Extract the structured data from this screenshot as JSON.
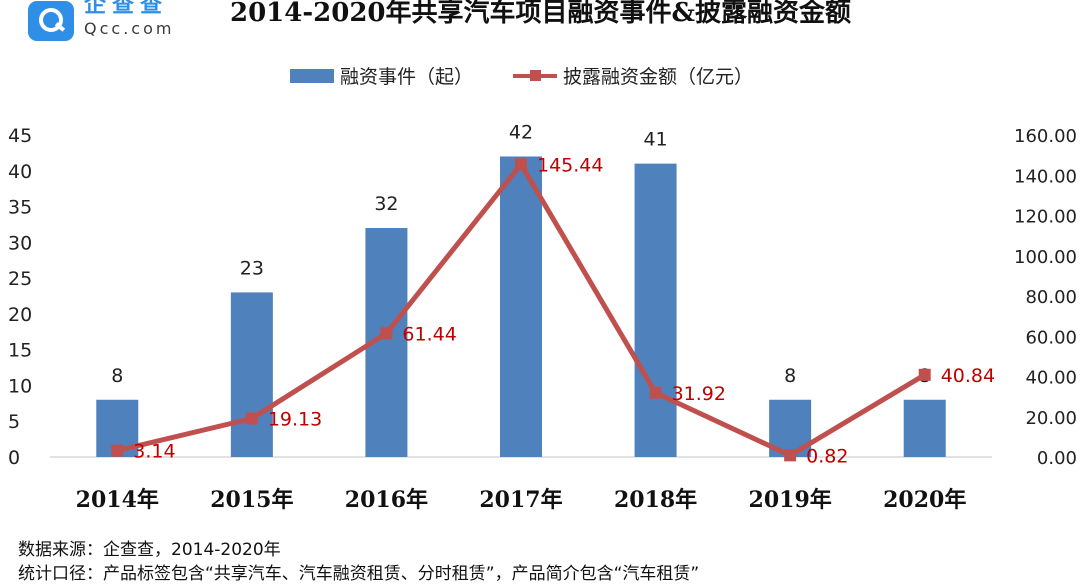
{
  "logo": {
    "cn": "企查查",
    "en": "Qcc.com"
  },
  "title": "2014-2020年共享汽车项目融资事件&披露融资金额",
  "legend": {
    "bar": "融资事件（起）",
    "line": "披露融资金额（亿元）"
  },
  "colors": {
    "bar": "#4f81bd",
    "line": "#c0504d",
    "line_label": "#c00000",
    "grid": "#d9d9d9"
  },
  "chart_data": {
    "type": "bar",
    "title": "2014-2020年共享汽车项目融资事件&披露融资金额",
    "categories": [
      "2014年",
      "2015年",
      "2016年",
      "2017年",
      "2018年",
      "2019年",
      "2020年"
    ],
    "series": [
      {
        "name": "融资事件（起）",
        "type": "bar",
        "axis": "left",
        "values": [
          8,
          23,
          32,
          42,
          41,
          8,
          8
        ]
      },
      {
        "name": "披露融资金额（亿元）",
        "type": "line",
        "axis": "right",
        "values": [
          3.14,
          19.13,
          61.44,
          145.44,
          31.92,
          0.82,
          40.84
        ]
      }
    ],
    "bar_labels": [
      "8",
      "23",
      "32",
      "42",
      "41",
      "8",
      "8"
    ],
    "line_labels": [
      "3.14",
      "19.13",
      "61.44",
      "145.44",
      "31.92",
      "0.82",
      "40.84"
    ],
    "y_left": {
      "ticks": [
        "0",
        "5",
        "10",
        "15",
        "20",
        "25",
        "30",
        "35",
        "40",
        "45"
      ],
      "min": 0,
      "max": 45
    },
    "y_right": {
      "ticks": [
        "0.00",
        "20.00",
        "40.00",
        "60.00",
        "80.00",
        "100.00",
        "120.00",
        "140.00",
        "160.00"
      ],
      "min": 0,
      "max": 160
    },
    "grid": true,
    "legend_position": "top-center"
  },
  "notes": {
    "source": "数据来源：企查查，2014-2020年",
    "scope": "统计口径：产品标签包含“共享汽车、汽车融资租赁、分时租赁”，产品简介包含“汽车租赁”"
  }
}
